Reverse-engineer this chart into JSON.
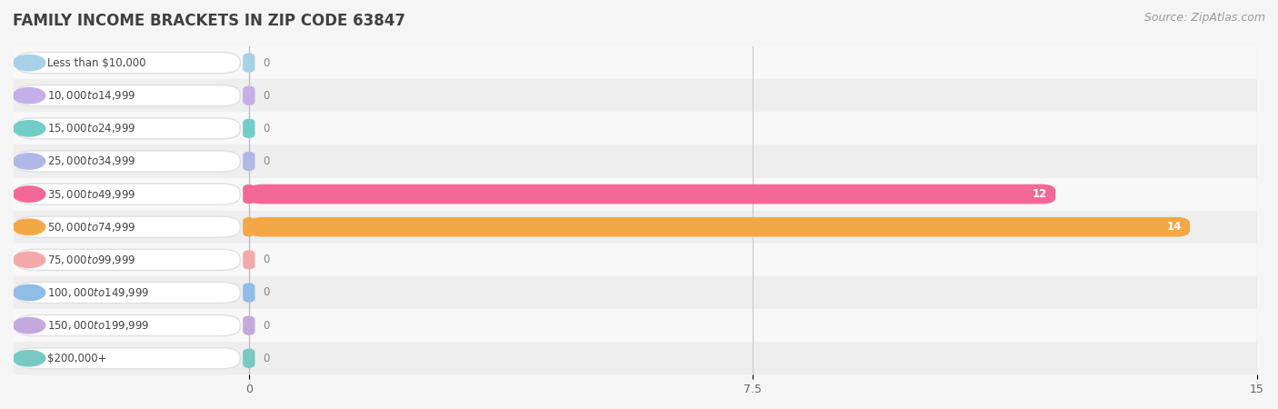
{
  "title": "FAMILY INCOME BRACKETS IN ZIP CODE 63847",
  "source": "Source: ZipAtlas.com",
  "categories": [
    "Less than $10,000",
    "$10,000 to $14,999",
    "$15,000 to $24,999",
    "$25,000 to $34,999",
    "$35,000 to $49,999",
    "$50,000 to $74,999",
    "$75,000 to $99,999",
    "$100,000 to $149,999",
    "$150,000 to $199,999",
    "$200,000+"
  ],
  "values": [
    0,
    0,
    0,
    0,
    12,
    14,
    0,
    0,
    0,
    0
  ],
  "bar_colors": [
    "#a8d1e8",
    "#c4afe8",
    "#72cdc8",
    "#b0b8e8",
    "#f46898",
    "#f4a845",
    "#f4aaaa",
    "#90bce8",
    "#c4aadc",
    "#78c8c4"
  ],
  "label_pill_bg": "#ffffff",
  "xlim": [
    0,
    15
  ],
  "xticks": [
    0,
    7.5,
    15
  ],
  "row_colors": [
    "#f8f8f8",
    "#eeeeee"
  ],
  "background_color": "#f5f5f5",
  "title_fontsize": 12,
  "source_fontsize": 9,
  "label_fontsize": 8.5,
  "value_fontsize": 8.5
}
